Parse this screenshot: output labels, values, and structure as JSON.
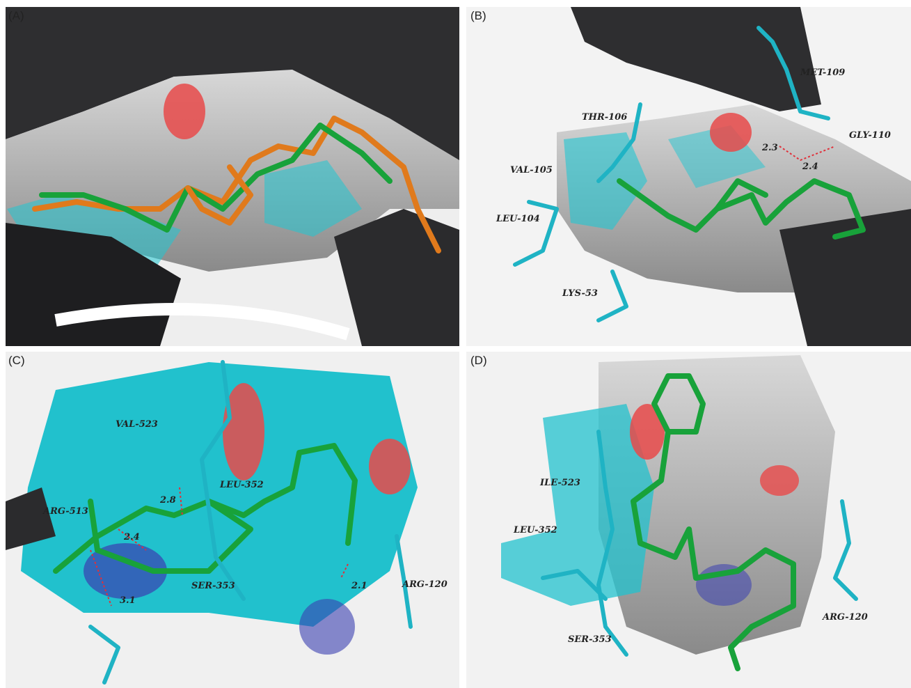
{
  "panels": [
    {
      "label": "(A)",
      "annotations": []
    },
    {
      "label": "(B)",
      "annotations": [
        "MET-109",
        "THR-106",
        "GLY-110",
        "VAL-105",
        "2.3",
        "2.4",
        "LEU-104",
        "LYS-53"
      ]
    },
    {
      "label": "(C)",
      "annotations": [
        "VAL-523",
        "LEU-352",
        "2.8",
        "ARG-513",
        "2.4",
        "3.1",
        "SER-353",
        "2.1",
        "ARG-120"
      ]
    },
    {
      "label": "(D)",
      "annotations": [
        "ILE-523",
        "LEU-352",
        "SER-353",
        "ARG-120"
      ]
    }
  ]
}
